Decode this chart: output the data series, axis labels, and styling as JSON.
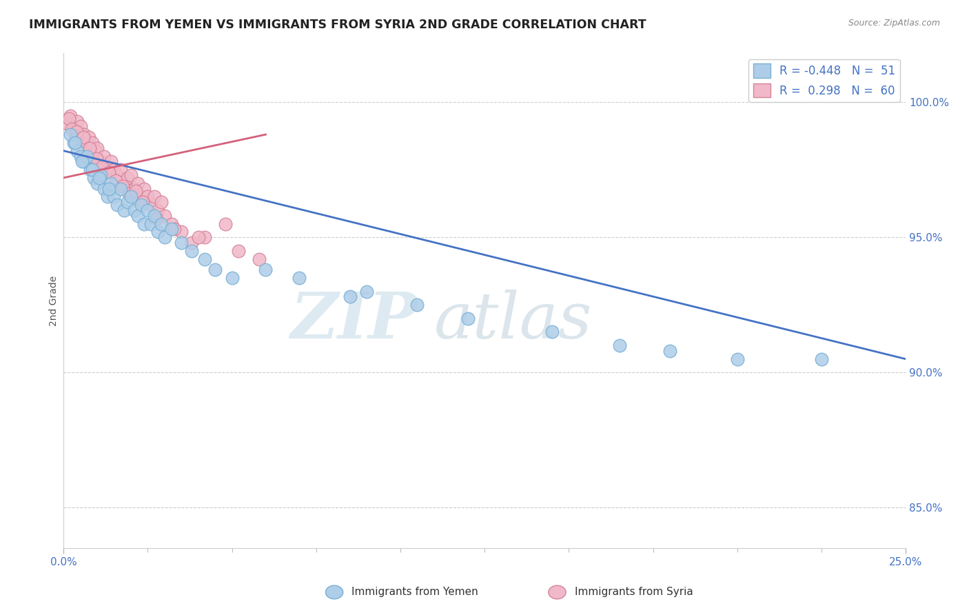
{
  "title": "IMMIGRANTS FROM YEMEN VS IMMIGRANTS FROM SYRIA 2ND GRADE CORRELATION CHART",
  "source": "Source: ZipAtlas.com",
  "ylabel": "2nd Grade",
  "yticks": [
    85.0,
    90.0,
    95.0,
    100.0
  ],
  "xlim": [
    0.0,
    25.0
  ],
  "ylim": [
    83.5,
    101.8
  ],
  "watermark_part1": "ZIP",
  "watermark_part2": "atlas",
  "legend_r_yemen": "-0.448",
  "legend_n_yemen": "51",
  "legend_r_syria": "0.298",
  "legend_n_syria": "60",
  "yemen_color": "#aecde8",
  "yemen_edge_color": "#7ab0d4",
  "syria_color": "#f0b8c8",
  "syria_edge_color": "#d4849a",
  "line_yemen_color": "#4472c4",
  "line_syria_color": "#d4607a",
  "yemen_line_x0": 0.0,
  "yemen_line_y0": 98.2,
  "yemen_line_x1": 25.0,
  "yemen_line_y1": 90.5,
  "syria_line_x0": 0.0,
  "syria_line_y0": 97.2,
  "syria_line_x1": 6.0,
  "syria_line_y1": 98.8,
  "yemen_x": [
    0.3,
    0.4,
    0.5,
    0.6,
    0.7,
    0.8,
    0.9,
    1.0,
    1.1,
    1.2,
    1.3,
    1.4,
    1.5,
    1.6,
    1.7,
    1.8,
    1.9,
    2.0,
    2.1,
    2.2,
    2.3,
    2.4,
    2.5,
    2.6,
    2.7,
    2.8,
    2.9,
    3.0,
    3.2,
    3.5,
    3.8,
    4.2,
    4.5,
    5.0,
    6.0,
    7.0,
    8.5,
    9.0,
    10.5,
    12.0,
    14.5,
    16.5,
    18.0,
    20.0,
    22.5,
    0.2,
    0.35,
    0.55,
    0.85,
    1.05,
    1.35
  ],
  "yemen_y": [
    98.5,
    98.2,
    98.0,
    97.8,
    98.0,
    97.5,
    97.2,
    97.0,
    97.3,
    96.8,
    96.5,
    97.0,
    96.5,
    96.2,
    96.8,
    96.0,
    96.3,
    96.5,
    96.0,
    95.8,
    96.2,
    95.5,
    96.0,
    95.5,
    95.8,
    95.2,
    95.5,
    95.0,
    95.3,
    94.8,
    94.5,
    94.2,
    93.8,
    93.5,
    93.8,
    93.5,
    92.8,
    93.0,
    92.5,
    92.0,
    91.5,
    91.0,
    90.8,
    90.5,
    90.5,
    98.8,
    98.5,
    97.8,
    97.5,
    97.2,
    96.8
  ],
  "syria_x": [
    0.1,
    0.2,
    0.3,
    0.35,
    0.4,
    0.45,
    0.5,
    0.55,
    0.6,
    0.65,
    0.7,
    0.75,
    0.8,
    0.85,
    0.9,
    0.95,
    1.0,
    1.1,
    1.2,
    1.3,
    1.4,
    1.5,
    1.6,
    1.7,
    1.8,
    1.9,
    2.0,
    2.1,
    2.2,
    2.3,
    2.4,
    2.5,
    2.6,
    2.7,
    2.8,
    2.9,
    3.0,
    3.2,
    3.5,
    3.8,
    4.2,
    4.8,
    5.2,
    5.8,
    0.15,
    0.25,
    0.38,
    0.58,
    0.78,
    0.98,
    1.15,
    1.35,
    1.55,
    1.75,
    1.95,
    2.15,
    2.35,
    2.75,
    3.3,
    4.0
  ],
  "syria_y": [
    99.2,
    99.5,
    99.0,
    98.8,
    99.3,
    98.9,
    99.1,
    98.6,
    98.8,
    98.5,
    98.5,
    98.7,
    98.2,
    98.5,
    98.0,
    98.2,
    98.3,
    97.8,
    98.0,
    97.5,
    97.8,
    97.5,
    97.3,
    97.5,
    97.0,
    97.2,
    97.3,
    96.8,
    97.0,
    96.5,
    96.8,
    96.5,
    96.2,
    96.5,
    96.0,
    96.3,
    95.8,
    95.5,
    95.2,
    94.8,
    95.0,
    95.5,
    94.5,
    94.2,
    99.4,
    99.0,
    98.9,
    98.7,
    98.3,
    97.9,
    97.6,
    97.4,
    97.1,
    96.9,
    96.6,
    96.7,
    96.3,
    95.7,
    95.3,
    95.0
  ]
}
